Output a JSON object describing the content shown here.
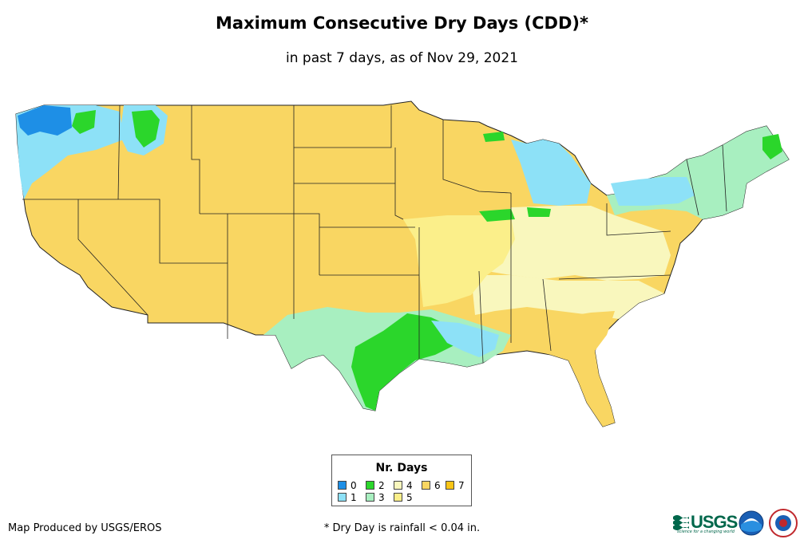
{
  "title": "Maximum Consecutive Dry Days (CDD)*",
  "subtitle": "in past 7 days, as of Nov 29, 2021",
  "legend": {
    "title": "Nr. Days",
    "items": [
      {
        "label": "0",
        "color": "#1e8fe6"
      },
      {
        "label": "1",
        "color": "#8de1f7"
      },
      {
        "label": "2",
        "color": "#2bd62b"
      },
      {
        "label": "3",
        "color": "#a8efc0"
      },
      {
        "label": "4",
        "color": "#f9f7bd"
      },
      {
        "label": "5",
        "color": "#fbef8a"
      },
      {
        "label": "6",
        "color": "#f9d662"
      },
      {
        "label": "7",
        "color": "#f9c516"
      }
    ]
  },
  "credit": "Map Produced by USGS/EROS",
  "footnote": "* Dry Day is rainfall < 0.04 in.",
  "logos": {
    "usgs_text": "USGS",
    "usgs_tagline": "science for a changing world"
  }
}
